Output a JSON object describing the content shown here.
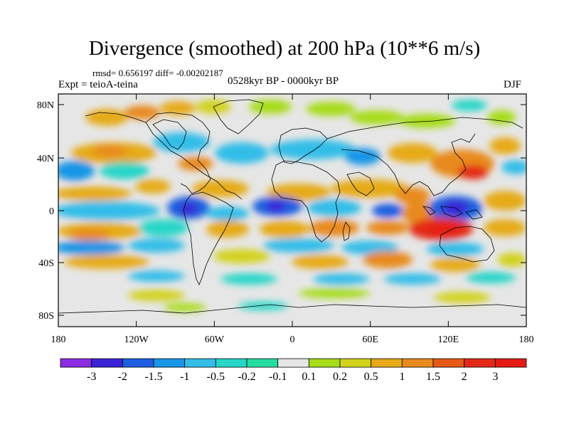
{
  "title": "Divergence (smoothed) at 200 hPa (10**6 m/s)",
  "stats": "rmsd= 0.656197 diff= -0.00202187",
  "experiment": "Expt = teioA-teina",
  "period": "0528kyr BP - 0000kyr BP",
  "season": "DJF",
  "lat_ticks": [
    "80N",
    "40N",
    "0",
    "40S",
    "80S"
  ],
  "lon_ticks": [
    "180",
    "120W",
    "60W",
    "0",
    "60E",
    "120E",
    "180"
  ],
  "colorbar": {
    "labels": [
      "-3",
      "-2",
      "-1.5",
      "-1",
      "-0.5",
      "-0.2",
      "-0.1",
      "0.1",
      "0.2",
      "0.5",
      "1",
      "1.5",
      "2",
      "3"
    ],
    "colors": [
      "#8b2be2",
      "#3a23d6",
      "#1f5fe0",
      "#1795e6",
      "#33bde8",
      "#27d6c8",
      "#25dca0",
      "#e6e6e6",
      "#a6dc18",
      "#d2d21c",
      "#e6aa18",
      "#e88a1e",
      "#e65a18",
      "#e42a16",
      "#e61a14"
    ]
  },
  "colors": {
    "neutral": "#e6e6e6",
    "coast": "#000000"
  }
}
